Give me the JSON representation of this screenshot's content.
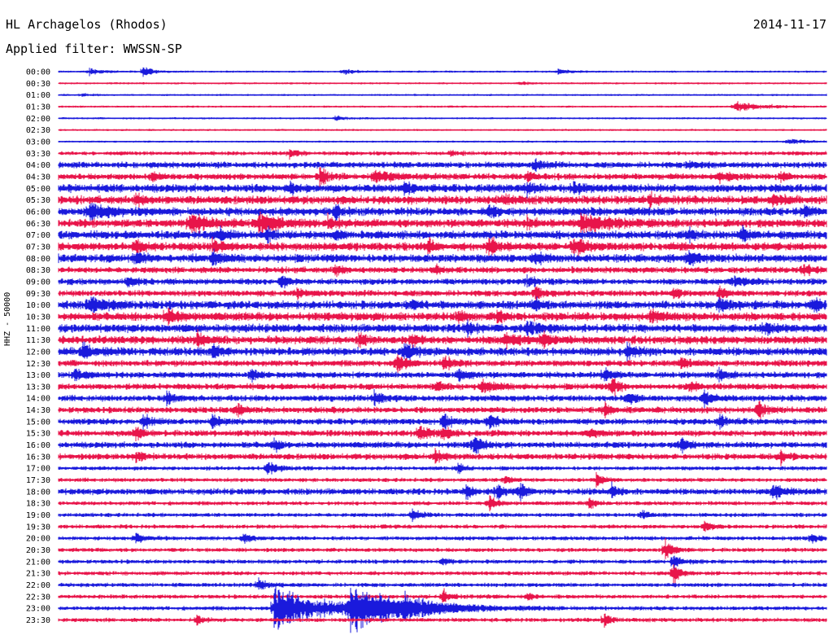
{
  "header": {
    "station": "HL Archagelos (Rhodos)",
    "date": "2014-11-17",
    "filter": "Applied filter: WWSSN-SP",
    "y_label": "HHZ - 50000"
  },
  "colors": {
    "even": "#1a1adc",
    "odd": "#e8144a"
  },
  "chart_data": {
    "type": "line",
    "title": "HL Archagelos (Rhodos)",
    "subtitle": "Applied filter: WWSSN-SP",
    "date": "2014-11-17",
    "ylabel": "HHZ - 50000",
    "trace_labels": [
      "00:00",
      "00:30",
      "01:00",
      "01:30",
      "02:00",
      "02:30",
      "03:00",
      "03:30",
      "04:00",
      "04:30",
      "05:00",
      "05:30",
      "06:00",
      "06:30",
      "07:00",
      "07:30",
      "08:00",
      "08:30",
      "09:00",
      "09:30",
      "10:00",
      "10:30",
      "11:00",
      "11:30",
      "12:00",
      "12:30",
      "13:00",
      "13:30",
      "14:00",
      "14:30",
      "15:00",
      "15:30",
      "16:00",
      "16:30",
      "17:00",
      "17:30",
      "18:00",
      "18:30",
      "19:00",
      "19:30",
      "20:00",
      "20:30",
      "21:00",
      "21:30",
      "22:00",
      "22:30",
      "23:00",
      "23:30"
    ],
    "noise": [
      1,
      1,
      1,
      1,
      1,
      1,
      1,
      2,
      3,
      3,
      4,
      4,
      4,
      4,
      4,
      4,
      4,
      3,
      3,
      3,
      4,
      4,
      4,
      4,
      4,
      3,
      3,
      3,
      3,
      3,
      3,
      3,
      3,
      3,
      2,
      2,
      3,
      2,
      2,
      2,
      2,
      2,
      2,
      2,
      2,
      2,
      2,
      2
    ],
    "events": [
      [
        [
          0.04,
          4,
          0.012
        ],
        [
          0.11,
          9,
          0.006
        ],
        [
          0.37,
          4,
          0.01
        ],
        [
          0.65,
          3,
          0.012
        ]
      ],
      [
        [
          0.6,
          2,
          0.01
        ]
      ],
      [
        [
          0.03,
          2,
          0.004
        ]
      ],
      [
        [
          0.88,
          6,
          0.03
        ]
      ],
      [
        [
          0.36,
          3,
          0.01
        ]
      ],
      [],
      [
        [
          0.95,
          3,
          0.02
        ]
      ],
      [
        [
          0.3,
          6,
          0.006
        ],
        [
          0.51,
          4,
          0.004
        ]
      ],
      [
        [
          0.62,
          8,
          0.006
        ],
        [
          0.82,
          4,
          0.01
        ]
      ],
      [
        [
          0.12,
          7,
          0.005
        ],
        [
          0.34,
          11,
          0.006
        ],
        [
          0.41,
          7,
          0.02
        ],
        [
          0.61,
          7,
          0.005
        ],
        [
          0.86,
          6,
          0.012
        ],
        [
          0.94,
          6,
          0.004
        ]
      ],
      [
        [
          0.3,
          8,
          0.005
        ],
        [
          0.45,
          6,
          0.005
        ],
        [
          0.61,
          7,
          0.005
        ],
        [
          0.67,
          8,
          0.005
        ]
      ],
      [
        [
          0.1,
          7,
          0.004
        ],
        [
          0.58,
          6,
          0.005
        ],
        [
          0.77,
          7,
          0.005
        ],
        [
          0.93,
          6,
          0.01
        ]
      ],
      [
        [
          0.04,
          9,
          0.02
        ],
        [
          0.36,
          8,
          0.004
        ],
        [
          0.56,
          8,
          0.004
        ],
        [
          0.97,
          7,
          0.006
        ]
      ],
      [
        [
          0.17,
          13,
          0.02
        ],
        [
          0.26,
          13,
          0.018
        ],
        [
          0.35,
          7,
          0.004
        ],
        [
          0.61,
          6,
          0.005
        ],
        [
          0.68,
          10,
          0.03
        ]
      ],
      [
        [
          0.21,
          11,
          0.005
        ],
        [
          0.27,
          8,
          0.005
        ],
        [
          0.36,
          6,
          0.004
        ],
        [
          0.82,
          8,
          0.005
        ],
        [
          0.89,
          9,
          0.004
        ]
      ],
      [
        [
          0.1,
          11,
          0.005
        ],
        [
          0.2,
          8,
          0.005
        ],
        [
          0.48,
          9,
          0.004
        ],
        [
          0.56,
          12,
          0.006
        ],
        [
          0.67,
          9,
          0.014
        ]
      ],
      [
        [
          0.1,
          8,
          0.005
        ],
        [
          0.2,
          11,
          0.006
        ],
        [
          0.62,
          7,
          0.005
        ],
        [
          0.82,
          9,
          0.006
        ]
      ],
      [
        [
          0.36,
          7,
          0.004
        ],
        [
          0.49,
          6,
          0.004
        ],
        [
          0.97,
          7,
          0.008
        ]
      ],
      [
        [
          0.09,
          6,
          0.01
        ],
        [
          0.29,
          8,
          0.004
        ],
        [
          0.61,
          7,
          0.005
        ],
        [
          0.88,
          6,
          0.01
        ]
      ],
      [
        [
          0.31,
          7,
          0.005
        ],
        [
          0.62,
          9,
          0.005
        ],
        [
          0.8,
          7,
          0.005
        ],
        [
          0.86,
          8,
          0.005
        ]
      ],
      [
        [
          0.04,
          10,
          0.015
        ],
        [
          0.46,
          7,
          0.004
        ],
        [
          0.62,
          7,
          0.005
        ],
        [
          0.86,
          7,
          0.01
        ],
        [
          0.98,
          8,
          0.008
        ]
      ],
      [
        [
          0.14,
          10,
          0.008
        ],
        [
          0.52,
          7,
          0.005
        ],
        [
          0.57,
          8,
          0.004
        ],
        [
          0.77,
          8,
          0.01
        ]
      ],
      [
        [
          0.53,
          10,
          0.004
        ],
        [
          0.61,
          9,
          0.01
        ],
        [
          0.92,
          7,
          0.006
        ]
      ],
      [
        [
          0.18,
          9,
          0.006
        ],
        [
          0.39,
          8,
          0.004
        ],
        [
          0.46,
          7,
          0.006
        ],
        [
          0.58,
          8,
          0.01
        ],
        [
          0.63,
          8,
          0.006
        ]
      ],
      [
        [
          0.03,
          9,
          0.01
        ],
        [
          0.2,
          8,
          0.006
        ],
        [
          0.45,
          12,
          0.006
        ],
        [
          0.74,
          8,
          0.006
        ]
      ],
      [
        [
          0.44,
          12,
          0.006
        ],
        [
          0.5,
          9,
          0.01
        ],
        [
          0.81,
          7,
          0.006
        ]
      ],
      [
        [
          0.02,
          10,
          0.006
        ],
        [
          0.25,
          8,
          0.005
        ],
        [
          0.52,
          8,
          0.008
        ],
        [
          0.71,
          9,
          0.005
        ],
        [
          0.86,
          8,
          0.005
        ]
      ],
      [
        [
          0.49,
          7,
          0.006
        ],
        [
          0.55,
          9,
          0.012
        ],
        [
          0.72,
          12,
          0.005
        ],
        [
          0.82,
          7,
          0.005
        ]
      ],
      [
        [
          0.14,
          8,
          0.006
        ],
        [
          0.41,
          10,
          0.006
        ],
        [
          0.74,
          8,
          0.005
        ],
        [
          0.84,
          10,
          0.006
        ]
      ],
      [
        [
          0.23,
          9,
          0.005
        ],
        [
          0.71,
          8,
          0.005
        ],
        [
          0.91,
          14,
          0.005
        ]
      ],
      [
        [
          0.11,
          10,
          0.005
        ],
        [
          0.2,
          8,
          0.006
        ],
        [
          0.5,
          10,
          0.006
        ],
        [
          0.56,
          10,
          0.006
        ],
        [
          0.86,
          8,
          0.006
        ]
      ],
      [
        [
          0.1,
          9,
          0.005
        ],
        [
          0.47,
          11,
          0.006
        ],
        [
          0.5,
          9,
          0.006
        ],
        [
          0.69,
          8,
          0.005
        ]
      ],
      [
        [
          0.28,
          7,
          0.005
        ],
        [
          0.54,
          13,
          0.006
        ],
        [
          0.81,
          8,
          0.006
        ]
      ],
      [
        [
          0.1,
          7,
          0.005
        ],
        [
          0.49,
          7,
          0.006
        ],
        [
          0.94,
          9,
          0.004
        ]
      ],
      [
        [
          0.27,
          8,
          0.01
        ],
        [
          0.52,
          6,
          0.005
        ]
      ],
      [
        [
          0.7,
          9,
          0.004
        ],
        [
          0.58,
          5,
          0.004
        ]
      ],
      [
        [
          0.53,
          9,
          0.004
        ],
        [
          0.57,
          10,
          0.005
        ],
        [
          0.6,
          11,
          0.004
        ],
        [
          0.72,
          9,
          0.006
        ],
        [
          0.93,
          8,
          0.01
        ]
      ],
      [
        [
          0.56,
          11,
          0.004
        ],
        [
          0.69,
          6,
          0.005
        ]
      ],
      [
        [
          0.46,
          7,
          0.006
        ],
        [
          0.76,
          6,
          0.004
        ]
      ],
      [
        [
          0.84,
          9,
          0.004
        ]
      ],
      [
        [
          0.1,
          6,
          0.01
        ],
        [
          0.24,
          8,
          0.004
        ],
        [
          0.98,
          7,
          0.006
        ]
      ],
      [
        [
          0.79,
          16,
          0.004
        ]
      ],
      [
        [
          0.8,
          10,
          0.005
        ],
        [
          0.5,
          5,
          0.005
        ]
      ],
      [
        [
          0.8,
          14,
          0.004
        ]
      ],
      [
        [
          0.26,
          7,
          0.01
        ]
      ],
      [
        [
          0.5,
          10,
          0.004
        ],
        [
          0.61,
          6,
          0.004
        ]
      ],
      [
        [
          0.28,
          26,
          0.06
        ],
        [
          0.38,
          26,
          0.06
        ],
        [
          0.45,
          10,
          0.02
        ]
      ],
      [
        [
          0.18,
          6,
          0.004
        ],
        [
          0.71,
          9,
          0.004
        ]
      ]
    ]
  }
}
